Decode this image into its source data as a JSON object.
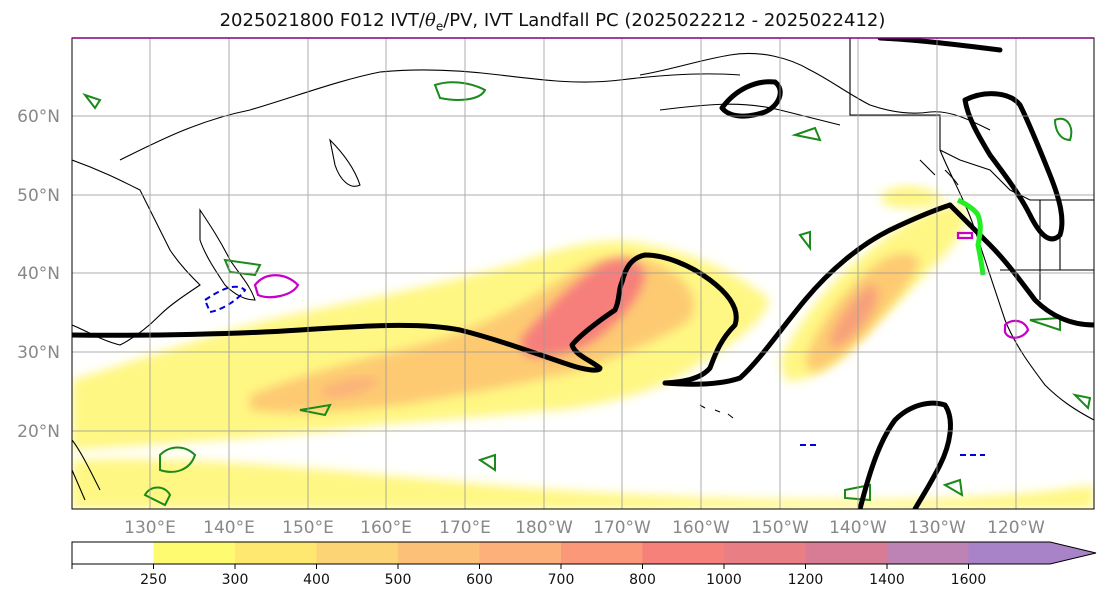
{
  "title": {
    "prefix": "2025021800 F012 IVT/",
    "theta": "θ",
    "theta_sub": "e",
    "suffix": "/PV, IVT Landfall PC (2025022212 - 2025022412)"
  },
  "map": {
    "lat_labels": [
      "60°N",
      "50°N",
      "40°N",
      "30°N",
      "20°N"
    ],
    "lon_labels": [
      "130°E",
      "140°E",
      "150°E",
      "160°E",
      "170°E",
      "180°W",
      "170°W",
      "160°W",
      "150°W",
      "140°W",
      "130°W",
      "120°W"
    ],
    "lon_range": [
      120,
      250
    ],
    "lat_range": [
      10,
      70
    ]
  },
  "colorbar": {
    "levels": [
      "250",
      "300",
      "400",
      "500",
      "600",
      "700",
      "800",
      "1000",
      "1200",
      "1400",
      "1600"
    ],
    "colors": [
      "#ffffff",
      "#fffb70",
      "#fee870",
      "#fdd475",
      "#fcc078",
      "#fdb07a",
      "#fb987a",
      "#f6807a",
      "#e97f84",
      "#d87c95",
      "#bd83b5",
      "#a883c8"
    ]
  },
  "colors": {
    "ivt_low": "#fff783",
    "ivt_mid": "#fdca72",
    "ivt_high": "#f67f7b",
    "pc_contour": "#000000",
    "pv_green": "#1b8a1b",
    "theta_blue": "#0000dd",
    "magenta": "#c700c7",
    "landfall_green": "#22ee22"
  }
}
